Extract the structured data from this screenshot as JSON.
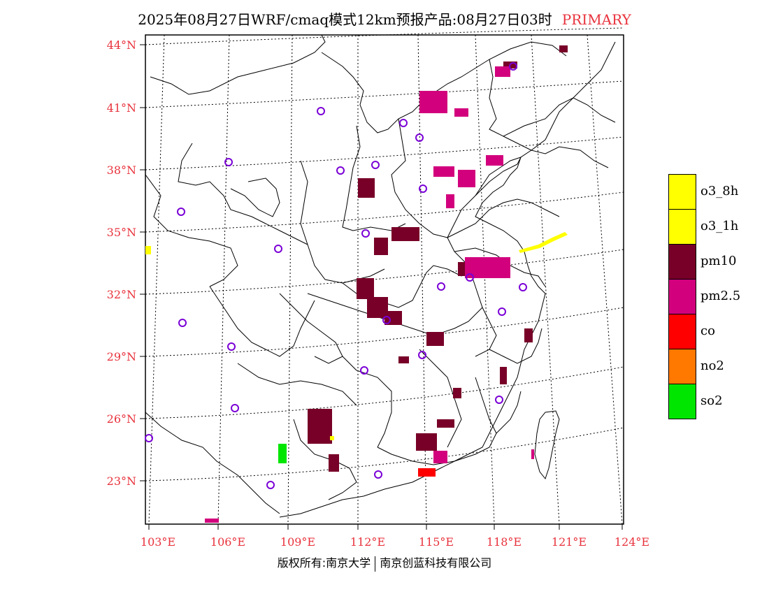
{
  "title": {
    "main": "2025年08月27日WRF/cmaq模式12km预报产品:08月27日03时",
    "tag": "PRIMARY"
  },
  "map": {
    "lat_labels": [
      "44°N",
      "41°N",
      "38°N",
      "35°N",
      "32°N",
      "29°N",
      "26°N",
      "23°N"
    ],
    "lon_labels": [
      "103°E",
      "106°E",
      "109°E",
      "112°E",
      "115°E",
      "118°E",
      "121°E",
      "124°E"
    ]
  },
  "legend": {
    "items": [
      {
        "label": "o3_8h",
        "color": "#ffff00"
      },
      {
        "label": "o3_1h",
        "color": "#ffff00"
      },
      {
        "label": "pm10",
        "color": "#780028"
      },
      {
        "label": "pm2.5",
        "color": "#d2007d"
      },
      {
        "label": "co",
        "color": "#ff0000"
      },
      {
        "label": "no2",
        "color": "#ff7800"
      },
      {
        "label": "so2",
        "color": "#00e600"
      }
    ]
  },
  "footer": {
    "left": "版权所有:南京大学",
    "right": "南京创蓝科技有限公司"
  },
  "colors": {
    "label_red": "#e8323c",
    "station_purple": "#7a00d6",
    "pm10": "#780028",
    "pm25": "#d2007d",
    "co": "#ff0000",
    "so2": "#00e600",
    "o3": "#ffff00"
  }
}
